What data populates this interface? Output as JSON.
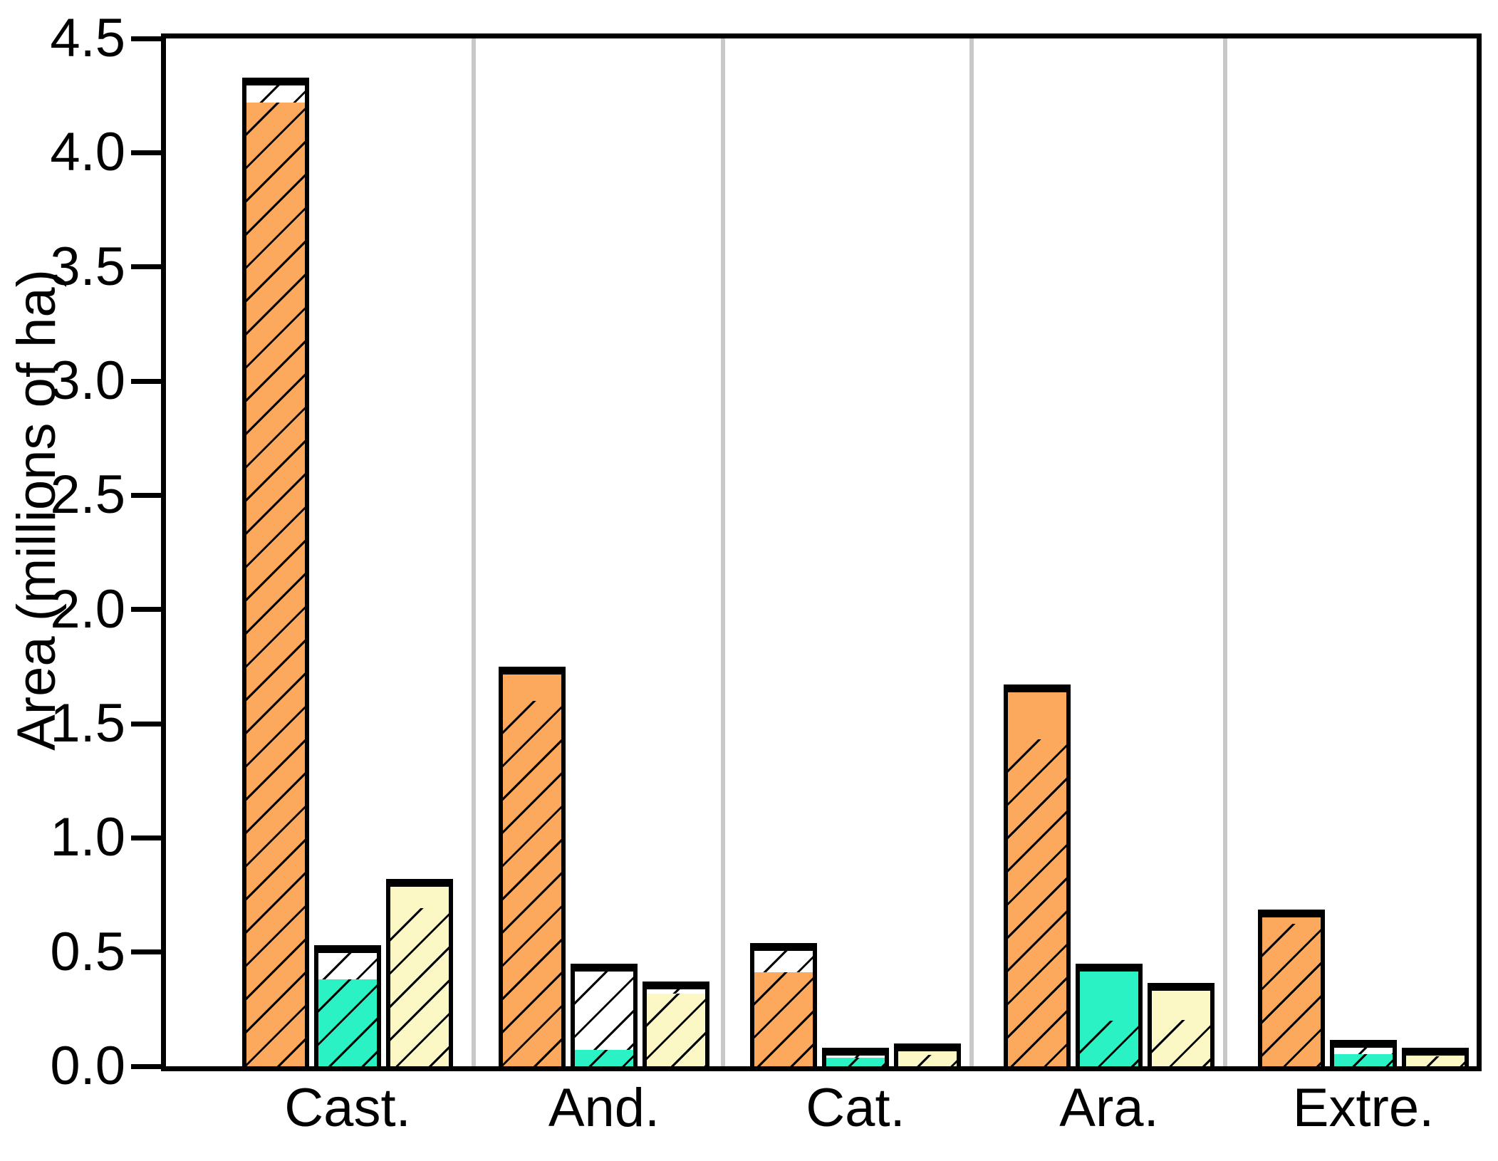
{
  "chart_data": {
    "type": "bar",
    "title": "",
    "xlabel": "",
    "ylabel": "Area (millions of ha)",
    "ylim": [
      0,
      4.5
    ],
    "ytick_labels": [
      "0.0",
      "0.5",
      "1.0",
      "1.5",
      "2.0",
      "2.5",
      "3.0",
      "3.5",
      "4.0",
      "4.5"
    ],
    "categories": [
      "Cast.",
      "And.",
      "Cat.",
      "Ara.",
      "Extre."
    ],
    "legend": "none",
    "grid": "vertical light-gray separator lines between category groups; framed plot box",
    "bar_style": "each bar is a stack: lower segment hatched (/ diagonal), upper segment either solid color or white hatched; black outlines",
    "colors": {
      "orange": "#FCA85D",
      "cyan": "#2BF2C4",
      "yellow": "#FBF8C5",
      "white": "#FFFFFF",
      "outline": "#000000",
      "separator": "#C8C8C8"
    },
    "groups": [
      {
        "category": "Cast.",
        "bars": [
          {
            "name": "orange",
            "total": 4.33,
            "segments": [
              {
                "fill": "orange",
                "hatch": true,
                "value": 4.24
              },
              {
                "fill": "white",
                "hatch": true,
                "value": 0.09
              }
            ]
          },
          {
            "name": "cyan",
            "total": 0.53,
            "segments": [
              {
                "fill": "cyan",
                "hatch": true,
                "value": 0.4
              },
              {
                "fill": "white",
                "hatch": true,
                "value": 0.13
              }
            ]
          },
          {
            "name": "yellow",
            "total": 0.82,
            "segments": [
              {
                "fill": "yellow",
                "hatch": true,
                "value": 0.71
              },
              {
                "fill": "yellow",
                "hatch": false,
                "value": 0.11
              }
            ]
          }
        ]
      },
      {
        "category": "And.",
        "bars": [
          {
            "name": "orange",
            "total": 1.75,
            "segments": [
              {
                "fill": "orange",
                "hatch": true,
                "value": 1.62
              },
              {
                "fill": "orange",
                "hatch": false,
                "value": 0.13
              }
            ]
          },
          {
            "name": "cyan",
            "total": 0.45,
            "segments": [
              {
                "fill": "cyan",
                "hatch": true,
                "value": 0.09
              },
              {
                "fill": "white",
                "hatch": true,
                "value": 0.36
              }
            ]
          },
          {
            "name": "yellow",
            "total": 0.37,
            "segments": [
              {
                "fill": "yellow",
                "hatch": true,
                "value": 0.335
              },
              {
                "fill": "white",
                "hatch": true,
                "value": 0.035
              }
            ]
          }
        ]
      },
      {
        "category": "Cat.",
        "bars": [
          {
            "name": "orange",
            "total": 0.54,
            "segments": [
              {
                "fill": "orange",
                "hatch": true,
                "value": 0.43
              },
              {
                "fill": "white",
                "hatch": true,
                "value": 0.11
              }
            ]
          },
          {
            "name": "cyan",
            "total": 0.08,
            "segments": [
              {
                "fill": "cyan",
                "hatch": true,
                "value": 0.055
              },
              {
                "fill": "white",
                "hatch": true,
                "value": 0.025
              }
            ]
          },
          {
            "name": "yellow",
            "total": 0.1,
            "segments": [
              {
                "fill": "yellow",
                "hatch": true,
                "value": 0.07
              },
              {
                "fill": "yellow",
                "hatch": false,
                "value": 0.03
              }
            ]
          }
        ]
      },
      {
        "category": "Ara.",
        "bars": [
          {
            "name": "orange",
            "total": 1.67,
            "segments": [
              {
                "fill": "orange",
                "hatch": true,
                "value": 1.45
              },
              {
                "fill": "orange",
                "hatch": false,
                "value": 0.22
              }
            ]
          },
          {
            "name": "cyan",
            "total": 0.45,
            "segments": [
              {
                "fill": "cyan",
                "hatch": true,
                "value": 0.22
              },
              {
                "fill": "cyan",
                "hatch": false,
                "value": 0.23
              }
            ]
          },
          {
            "name": "yellow",
            "total": 0.365,
            "segments": [
              {
                "fill": "yellow",
                "hatch": true,
                "value": 0.22
              },
              {
                "fill": "yellow",
                "hatch": false,
                "value": 0.145
              }
            ]
          }
        ]
      },
      {
        "category": "Extre.",
        "bars": [
          {
            "name": "orange",
            "total": 0.685,
            "segments": [
              {
                "fill": "orange",
                "hatch": true,
                "value": 0.64
              },
              {
                "fill": "orange",
                "hatch": false,
                "value": 0.045
              }
            ]
          },
          {
            "name": "cyan",
            "total": 0.115,
            "segments": [
              {
                "fill": "cyan",
                "hatch": true,
                "value": 0.07
              },
              {
                "fill": "white",
                "hatch": true,
                "value": 0.045
              }
            ]
          },
          {
            "name": "yellow",
            "total": 0.08,
            "segments": [
              {
                "fill": "yellow",
                "hatch": true,
                "value": 0.06
              },
              {
                "fill": "yellow",
                "hatch": false,
                "value": 0.02
              }
            ]
          }
        ]
      }
    ]
  }
}
